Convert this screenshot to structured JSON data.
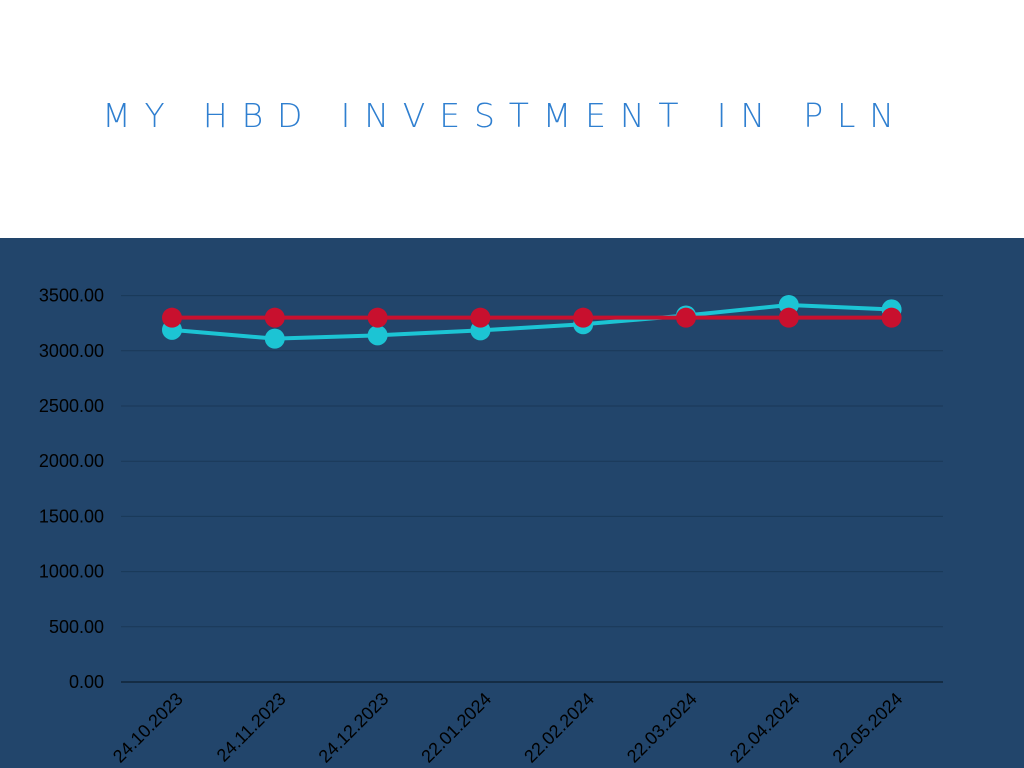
{
  "title": "MY HBD INVESTMENT IN PLN",
  "colors": {
    "panel_background": "#22456b",
    "title": "#2f7fd0",
    "series_value": "#1cc4d4",
    "series_invested": "#c8102e"
  },
  "chart_data": {
    "type": "line",
    "title": "MY HBD INVESTMENT IN PLN",
    "xlabel": "",
    "ylabel": "",
    "categories": [
      "24.10.2023",
      "24.11.2023",
      "24.12.2023",
      "22.01.2024",
      "22.02.2024",
      "22.03.2024",
      "22.04.2024",
      "22.05.2024"
    ],
    "series": [
      {
        "color": "#1cc4d4",
        "values": [
          3190,
          3110,
          3140,
          3185,
          3240,
          3320,
          3415,
          3375
        ]
      },
      {
        "color": "#c8102e",
        "values": [
          3300,
          3300,
          3300,
          3300,
          3300,
          3300,
          3300,
          3300
        ]
      }
    ],
    "y_ticks": [
      "0.00",
      "500.00",
      "1000.00",
      "1500.00",
      "2000.00",
      "2500.00",
      "3000.00",
      "3500.00"
    ],
    "ylim": [
      0,
      3500
    ],
    "grid": true,
    "legend": "none"
  }
}
